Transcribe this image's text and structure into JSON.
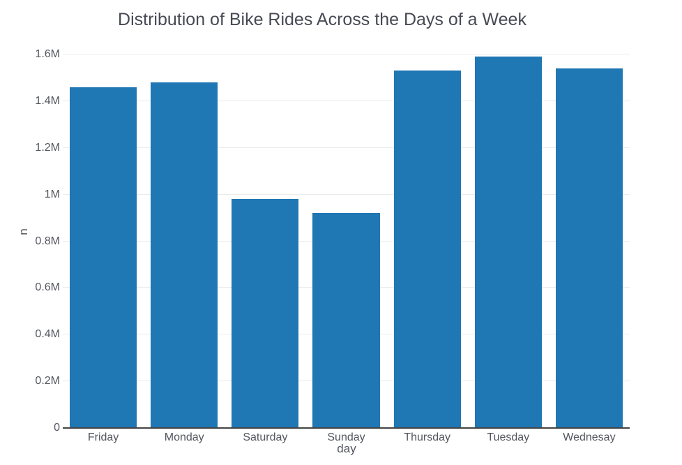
{
  "chart_data": {
    "type": "bar",
    "title": "Distribution of Bike Rides Across the Days of a Week",
    "xlabel": "day",
    "ylabel": "n",
    "categories": [
      "Friday",
      "Monday",
      "Saturday",
      "Sunday",
      "Thursday",
      "Tuesday",
      "Wednesay"
    ],
    "values": [
      1460000,
      1480000,
      980000,
      920000,
      1530000,
      1590000,
      1540000
    ],
    "ylim": [
      0,
      1654000
    ],
    "yticks": [
      {
        "value": 0,
        "label": "0"
      },
      {
        "value": 200000,
        "label": "0.2M"
      },
      {
        "value": 400000,
        "label": "0.4M"
      },
      {
        "value": 600000,
        "label": "0.6M"
      },
      {
        "value": 800000,
        "label": "0.8M"
      },
      {
        "value": 1000000,
        "label": "1M"
      },
      {
        "value": 1200000,
        "label": "1.2M"
      },
      {
        "value": 1400000,
        "label": "1.4M"
      },
      {
        "value": 1600000,
        "label": "1.6M"
      }
    ],
    "grid": true,
    "legend_position": "none",
    "bar_color": "#1f77b4",
    "bar_width_frac": 0.827
  },
  "colors": {
    "bar": "#1f77b4",
    "gridline": "#ebebeb",
    "axis_line": "#444444",
    "tick_text": "#53565e",
    "title_text": "#474a54",
    "background": "#ffffff"
  }
}
